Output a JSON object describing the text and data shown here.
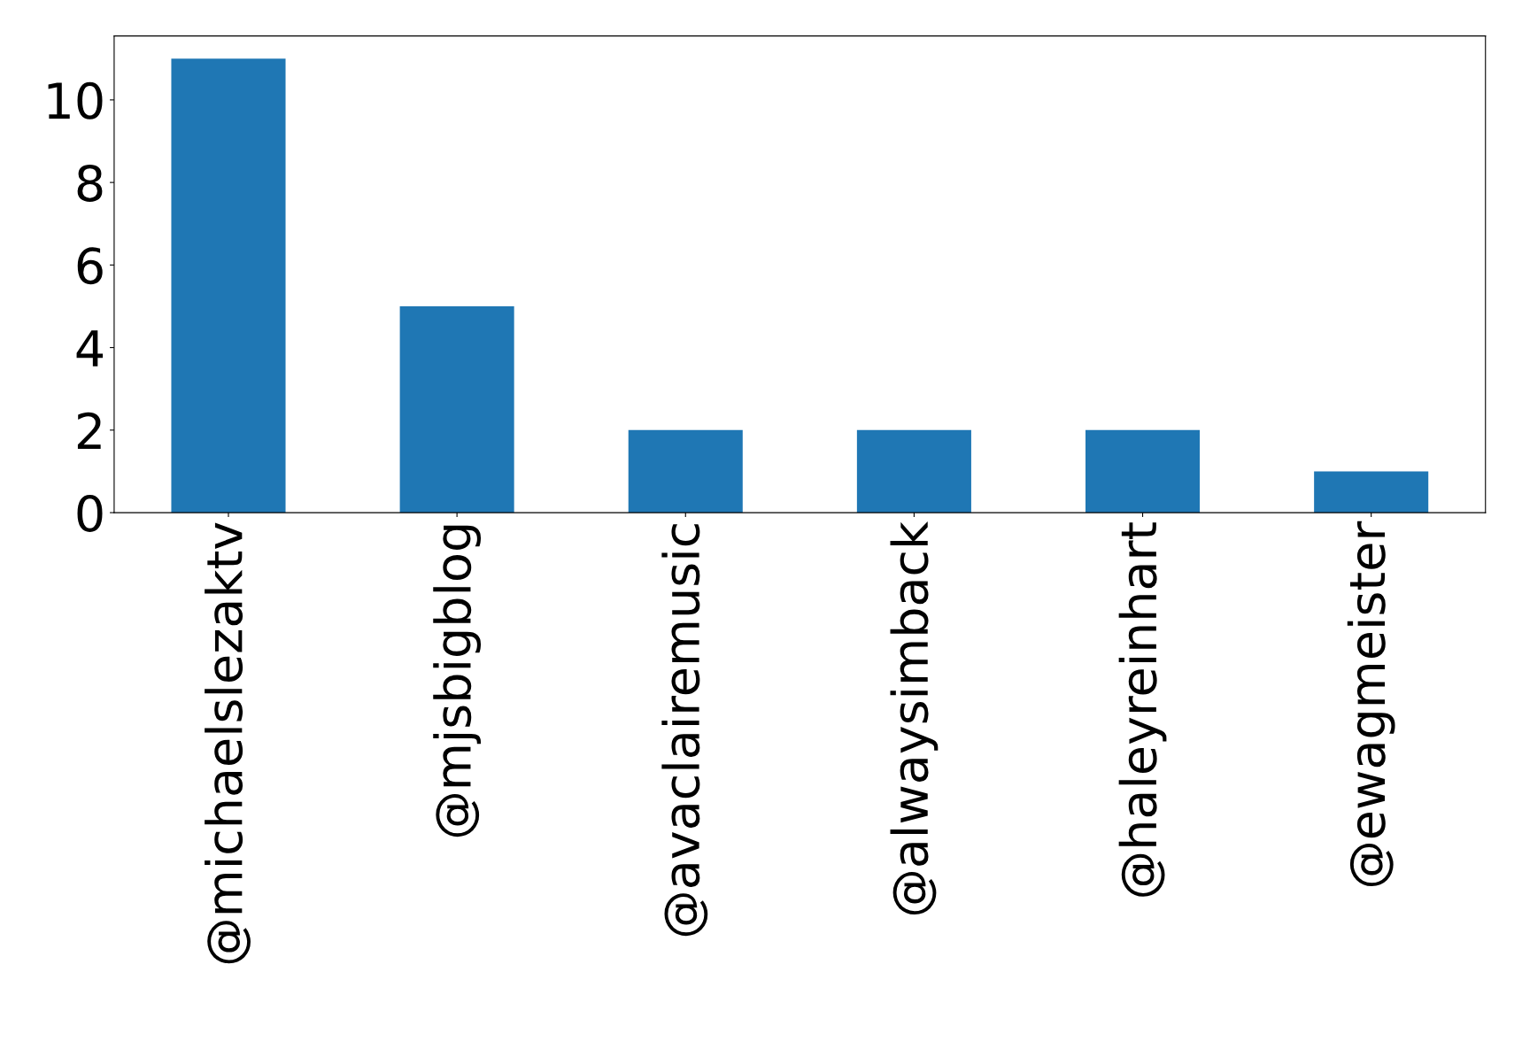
{
  "chart_data": {
    "type": "bar",
    "categories": [
      "@michaelslezaktv",
      "@mjsbigblog",
      "@avaclairemusic",
      "@alwaysimback",
      "@haleyreinhart",
      "@ewagmeister"
    ],
    "values": [
      11,
      5,
      2,
      2,
      2,
      1
    ],
    "color": "#1f77b4",
    "ylim": [
      0,
      11.55
    ],
    "yticks": [
      0,
      2,
      4,
      6,
      8,
      10
    ],
    "grid": false,
    "legend": false
  }
}
